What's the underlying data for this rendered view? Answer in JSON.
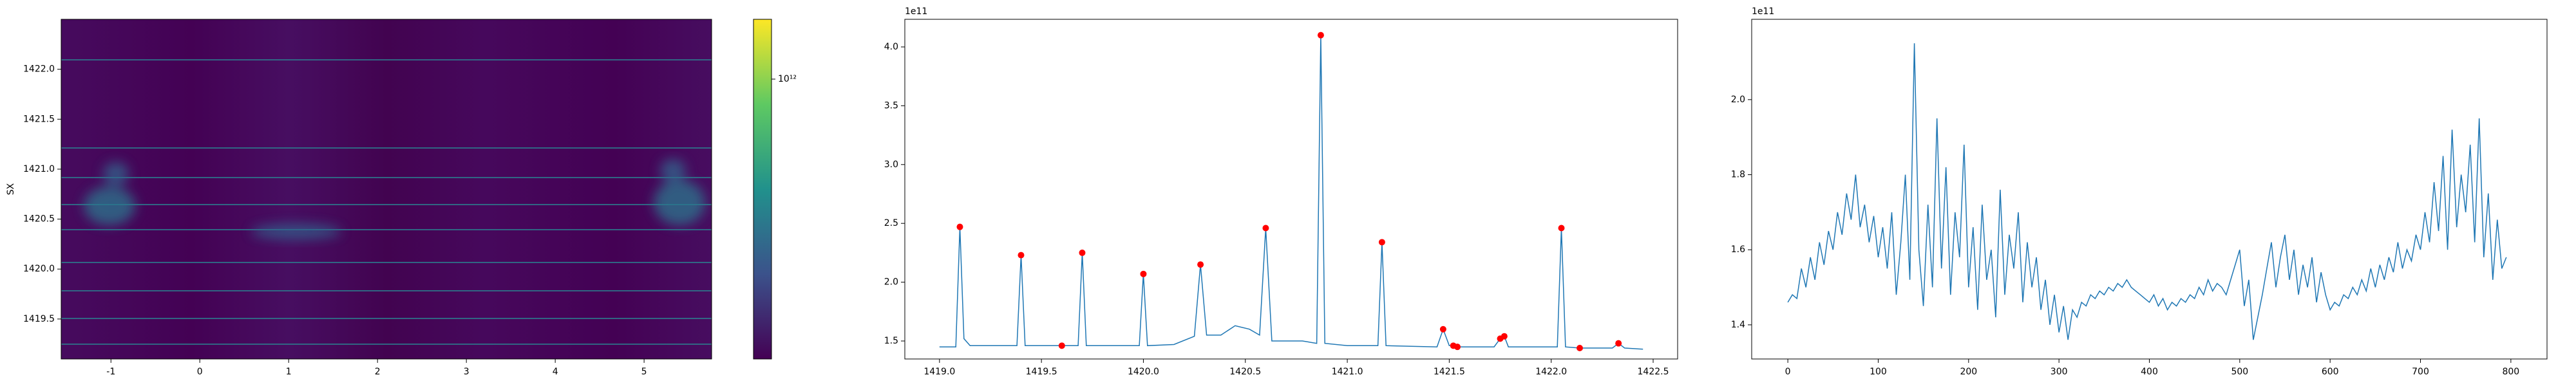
{
  "chart_data": [
    {
      "type": "heatmap",
      "ylabel": "SX",
      "xlim": [
        -1.56,
        5.76
      ],
      "xticks": [
        -1,
        0,
        1,
        2,
        3,
        4,
        5
      ],
      "ylim": [
        1419.1,
        1422.5
      ],
      "yticks": [
        1419.5,
        {
          "value": 1420,
          "label": "1420.0"
        },
        1420.5,
        {
          "value": 1421,
          "label": "1421.0"
        },
        1421.5,
        {
          "value": 1422,
          "label": "1422.0"
        }
      ],
      "colormap": "viridis",
      "colorbar": {
        "scale": "log",
        "lim": [
          150000000000,
          1500000000000
        ],
        "ticks": [
          {
            "value": 1000000000000,
            "label": "10¹²"
          }
        ]
      }
    },
    {
      "type": "line",
      "offset_label": "1e11",
      "xlim": [
        1418.83,
        1422.62
      ],
      "xticks": [
        {
          "value": 1419,
          "label": "1419.0"
        },
        1419.5,
        {
          "value": 1420,
          "label": "1420.0"
        },
        1420.5,
        {
          "value": 1421,
          "label": "1421.0"
        },
        1421.5,
        {
          "value": 1422,
          "label": "1422.0"
        },
        1422.5
      ],
      "ylim": [
        1.347,
        4.235
      ],
      "yticks": [
        1.5,
        {
          "value": 2,
          "label": "2.0"
        },
        2.5,
        {
          "value": 3,
          "label": "3.0"
        },
        3.5,
        {
          "value": 4,
          "label": "4.0"
        }
      ],
      "x": [
        1419.0,
        1419.08,
        1419.1,
        1419.12,
        1419.15,
        1419.38,
        1419.4,
        1419.42,
        1419.6,
        1419.68,
        1419.7,
        1419.72,
        1419.98,
        1420.0,
        1420.02,
        1420.15,
        1420.25,
        1420.28,
        1420.31,
        1420.38,
        1420.45,
        1420.52,
        1420.57,
        1420.6,
        1420.63,
        1420.78,
        1420.85,
        1420.87,
        1420.89,
        1421.0,
        1421.15,
        1421.17,
        1421.19,
        1421.44,
        1421.47,
        1421.5,
        1421.52,
        1421.54,
        1421.72,
        1421.75,
        1421.77,
        1421.79,
        1422.03,
        1422.05,
        1422.07,
        1422.14,
        1422.3,
        1422.33,
        1422.36,
        1422.45
      ],
      "series": [
        {
          "color": "#1f77b4",
          "values": [
            1.45,
            1.45,
            2.47,
            1.52,
            1.46,
            1.46,
            2.23,
            1.46,
            1.46,
            1.46,
            2.25,
            1.46,
            1.46,
            2.07,
            1.46,
            1.47,
            1.54,
            2.15,
            1.55,
            1.55,
            1.63,
            1.6,
            1.55,
            2.46,
            1.5,
            1.5,
            1.48,
            4.1,
            1.48,
            1.46,
            1.46,
            2.34,
            1.46,
            1.45,
            1.6,
            1.46,
            1.46,
            1.45,
            1.45,
            1.52,
            1.54,
            1.45,
            1.45,
            2.46,
            1.45,
            1.44,
            1.44,
            1.48,
            1.44,
            1.43
          ]
        }
      ],
      "markers": {
        "color": "red",
        "x": [
          1419.1,
          1419.4,
          1419.6,
          1419.7,
          1420.0,
          1420.28,
          1420.6,
          1420.87,
          1421.17,
          1421.47,
          1421.52,
          1421.54,
          1421.75,
          1421.77,
          1422.05,
          1422.14,
          1422.33
        ],
        "values": [
          2.47,
          2.23,
          1.46,
          2.25,
          2.07,
          2.15,
          2.46,
          4.1,
          2.34,
          1.6,
          1.46,
          1.45,
          1.52,
          1.54,
          2.46,
          1.44,
          1.48
        ]
      }
    },
    {
      "type": "line",
      "offset_label": "1e11",
      "xlim": [
        -40,
        840
      ],
      "xticks": [
        0,
        100,
        200,
        300,
        400,
        500,
        600,
        700,
        800
      ],
      "ylim": [
        1.309,
        2.214
      ],
      "yticks": [
        1.4,
        1.6,
        1.8,
        {
          "value": 2,
          "label": "2.0"
        }
      ],
      "x": [
        0,
        5,
        10,
        15,
        20,
        25,
        30,
        35,
        40,
        45,
        50,
        55,
        60,
        65,
        70,
        75,
        80,
        85,
        90,
        95,
        100,
        105,
        110,
        115,
        120,
        125,
        130,
        135,
        140,
        145,
        150,
        155,
        160,
        165,
        170,
        175,
        180,
        185,
        190,
        195,
        200,
        205,
        210,
        215,
        220,
        225,
        230,
        235,
        240,
        245,
        250,
        255,
        260,
        265,
        270,
        275,
        280,
        285,
        290,
        295,
        300,
        305,
        310,
        315,
        320,
        325,
        330,
        335,
        340,
        345,
        350,
        355,
        360,
        365,
        370,
        375,
        380,
        385,
        390,
        395,
        400,
        405,
        410,
        415,
        420,
        425,
        430,
        435,
        440,
        445,
        450,
        455,
        460,
        465,
        470,
        475,
        480,
        485,
        490,
        495,
        500,
        505,
        510,
        515,
        520,
        525,
        530,
        535,
        540,
        545,
        550,
        555,
        560,
        565,
        570,
        575,
        580,
        585,
        590,
        595,
        600,
        605,
        610,
        615,
        620,
        625,
        630,
        635,
        640,
        645,
        650,
        655,
        660,
        665,
        670,
        675,
        680,
        685,
        690,
        695,
        700,
        705,
        710,
        715,
        720,
        725,
        730,
        735,
        740,
        745,
        750,
        755,
        760,
        765,
        770,
        775,
        780,
        785,
        790,
        795
      ],
      "series": [
        {
          "color": "#1f77b4",
          "values": [
            1.46,
            1.48,
            1.47,
            1.55,
            1.5,
            1.58,
            1.52,
            1.62,
            1.56,
            1.65,
            1.6,
            1.7,
            1.64,
            1.75,
            1.68,
            1.8,
            1.66,
            1.72,
            1.62,
            1.69,
            1.58,
            1.66,
            1.55,
            1.7,
            1.48,
            1.62,
            1.8,
            1.52,
            2.15,
            1.6,
            1.45,
            1.72,
            1.5,
            1.95,
            1.55,
            1.82,
            1.48,
            1.7,
            1.58,
            1.88,
            1.5,
            1.66,
            1.44,
            1.72,
            1.52,
            1.6,
            1.42,
            1.76,
            1.48,
            1.64,
            1.55,
            1.7,
            1.46,
            1.62,
            1.5,
            1.58,
            1.44,
            1.52,
            1.4,
            1.48,
            1.38,
            1.45,
            1.36,
            1.44,
            1.42,
            1.46,
            1.45,
            1.48,
            1.47,
            1.49,
            1.48,
            1.5,
            1.49,
            1.51,
            1.5,
            1.52,
            1.5,
            1.49,
            1.48,
            1.47,
            1.46,
            1.48,
            1.45,
            1.47,
            1.44,
            1.46,
            1.45,
            1.47,
            1.46,
            1.48,
            1.47,
            1.5,
            1.48,
            1.52,
            1.49,
            1.51,
            1.5,
            1.48,
            1.52,
            1.56,
            1.6,
            1.45,
            1.52,
            1.36,
            1.42,
            1.48,
            1.55,
            1.62,
            1.5,
            1.58,
            1.64,
            1.52,
            1.6,
            1.48,
            1.56,
            1.5,
            1.58,
            1.46,
            1.54,
            1.48,
            1.44,
            1.46,
            1.45,
            1.48,
            1.47,
            1.5,
            1.48,
            1.52,
            1.49,
            1.55,
            1.5,
            1.56,
            1.52,
            1.58,
            1.54,
            1.62,
            1.55,
            1.6,
            1.57,
            1.64,
            1.6,
            1.7,
            1.62,
            1.78,
            1.65,
            1.85,
            1.6,
            1.92,
            1.66,
            1.8,
            1.7,
            1.88,
            1.62,
            1.95,
            1.58,
            1.75,
            1.52,
            1.68,
            1.55,
            1.58
          ]
        }
      ]
    }
  ]
}
